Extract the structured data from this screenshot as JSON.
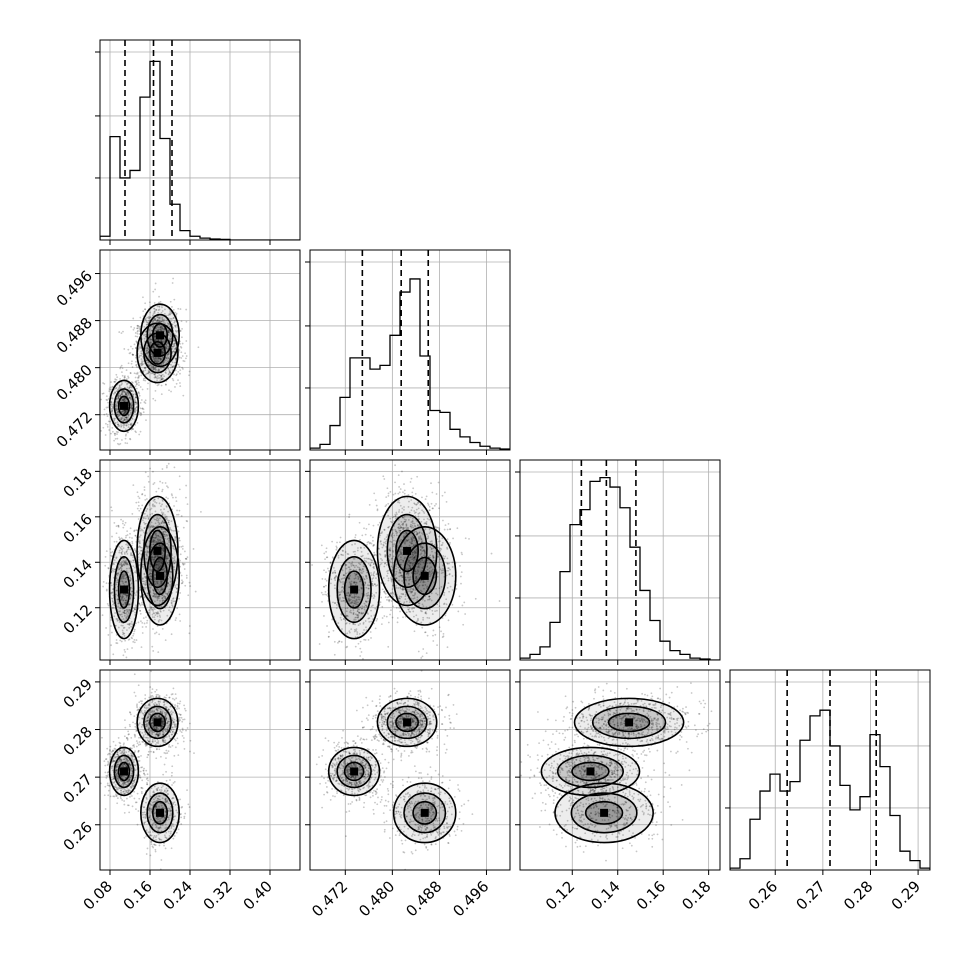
{
  "chart_data": {
    "type": "corner",
    "parameters": 4,
    "grid": true,
    "quantile_lines": "dashed",
    "axes": [
      {
        "range": [
          0.06,
          0.46
        ],
        "ticks": [
          "0.08",
          "0.16",
          "0.24",
          "0.32",
          "0.40"
        ],
        "tick_values": [
          0.08,
          0.16,
          0.24,
          0.32,
          0.4
        ],
        "quantiles": [
          0.11,
          0.167,
          0.204
        ]
      },
      {
        "range": [
          0.466,
          0.5
        ],
        "ticks": [
          "0.472",
          "0.480",
          "0.488",
          "0.496"
        ],
        "tick_values": [
          0.472,
          0.48,
          0.488,
          0.496
        ],
        "quantiles": [
          0.4749,
          0.4815,
          0.4861
        ]
      },
      {
        "range": [
          0.097,
          0.185
        ],
        "ticks": [
          "0.12",
          "0.14",
          "0.16",
          "0.18"
        ],
        "tick_values": [
          0.12,
          0.14,
          0.16,
          0.18
        ],
        "quantiles": [
          0.124,
          0.135,
          0.148
        ]
      },
      {
        "range": [
          0.2505,
          0.2925
        ],
        "ticks": [
          "0.26",
          "0.27",
          "0.28",
          "0.29"
        ],
        "tick_values": [
          0.26,
          0.27,
          0.28,
          0.29
        ],
        "quantiles": [
          0.2625,
          0.2715,
          0.2812
        ]
      }
    ],
    "histograms": [
      [
        0.02,
        0.55,
        0.33,
        0.37,
        0.76,
        0.95,
        0.54,
        0.19,
        0.05,
        0.02,
        0.01,
        0.005,
        0.003,
        0,
        0,
        0,
        0,
        0,
        0,
        0
      ],
      [
        0.01,
        0.03,
        0.13,
        0.28,
        0.49,
        0.49,
        0.43,
        0.45,
        0.61,
        0.84,
        0.91,
        0.5,
        0.21,
        0.2,
        0.11,
        0.07,
        0.04,
        0.02,
        0.01,
        0.005
      ],
      [
        0.01,
        0.03,
        0.07,
        0.2,
        0.47,
        0.72,
        0.8,
        0.95,
        0.97,
        0.92,
        0.81,
        0.6,
        0.37,
        0.21,
        0.1,
        0.05,
        0.03,
        0.01,
        0.005,
        0
      ],
      [
        0.01,
        0.06,
        0.27,
        0.42,
        0.51,
        0.42,
        0.47,
        0.69,
        0.82,
        0.85,
        0.66,
        0.45,
        0.32,
        0.39,
        0.72,
        0.55,
        0.29,
        0.1,
        0.05,
        0.01
      ]
    ],
    "modes": [
      {
        "p0": 0.108,
        "p1": 0.4735,
        "p2": 0.128,
        "p3": 0.2712,
        "weight": 0.34
      },
      {
        "p0": 0.175,
        "p1": 0.4825,
        "p2": 0.145,
        "p3": 0.2815,
        "weight": 0.42
      },
      {
        "p0": 0.18,
        "p1": 0.4855,
        "p2": 0.134,
        "p3": 0.2625,
        "weight": 0.24
      }
    ]
  }
}
